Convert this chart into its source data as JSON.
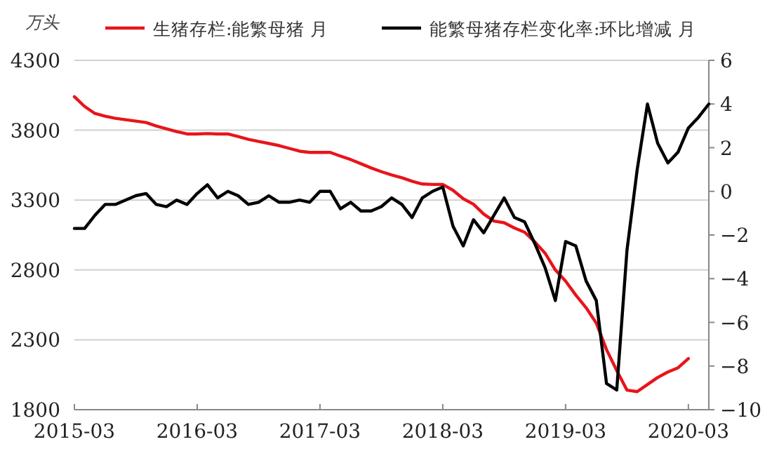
{
  "chart_data": {
    "type": "line",
    "ylabel": "万头",
    "legend": "top",
    "grid": "y",
    "x": [
      "2015-03",
      "2015-04",
      "2015-05",
      "2015-06",
      "2015-07",
      "2015-08",
      "2015-09",
      "2015-10",
      "2015-11",
      "2015-12",
      "2016-01",
      "2016-02",
      "2016-03",
      "2016-04",
      "2016-05",
      "2016-06",
      "2016-07",
      "2016-08",
      "2016-09",
      "2016-10",
      "2016-11",
      "2016-12",
      "2017-01",
      "2017-02",
      "2017-03",
      "2017-04",
      "2017-05",
      "2017-06",
      "2017-07",
      "2017-08",
      "2017-09",
      "2017-10",
      "2017-11",
      "2017-12",
      "2018-01",
      "2018-02",
      "2018-03",
      "2018-04",
      "2018-05",
      "2018-06",
      "2018-07",
      "2018-08",
      "2018-09",
      "2018-10",
      "2018-11",
      "2018-12",
      "2019-01",
      "2019-02",
      "2019-03",
      "2019-04",
      "2019-05",
      "2019-06",
      "2019-07",
      "2019-08",
      "2019-09",
      "2019-10",
      "2019-11",
      "2019-12",
      "2020-01",
      "2020-02",
      "2020-03",
      "2020-04",
      "2020-05"
    ],
    "series": [
      {
        "name": "生猪存栏:能繁母猪 月",
        "color": "#e8141b",
        "values": [
          4040,
          3970,
          3920,
          3900,
          3885,
          3875,
          3865,
          3855,
          3830,
          3810,
          3790,
          3773,
          3773,
          3776,
          3773,
          3773,
          3755,
          3735,
          3720,
          3705,
          3690,
          3670,
          3650,
          3641,
          3641,
          3641,
          3615,
          3590,
          3560,
          3530,
          3503,
          3480,
          3460,
          3435,
          3415,
          3412,
          3412,
          3370,
          3310,
          3270,
          3200,
          3150,
          3138,
          3100,
          3070,
          3000,
          2920,
          2800,
          2720,
          2620,
          2530,
          2420,
          2230,
          2080,
          1940,
          1929,
          1980,
          2030,
          2070,
          2100,
          2166,
          null,
          null
        ]
      },
      {
        "name": "能繁母猪存栏变化率:环比增减 月",
        "color": "#000000",
        "axis": "y2",
        "values": [
          -1.7,
          -1.7,
          -1.1,
          -0.6,
          -0.6,
          -0.4,
          -0.2,
          -0.1,
          -0.6,
          -0.7,
          -0.4,
          -0.6,
          -0.1,
          0.3,
          -0.3,
          0,
          -0.2,
          -0.6,
          -0.5,
          -0.2,
          -0.5,
          -0.5,
          -0.4,
          -0.5,
          0,
          0,
          -0.8,
          -0.5,
          -0.9,
          -0.9,
          -0.7,
          -0.3,
          -0.6,
          -1.2,
          -0.3,
          0,
          0.2,
          -1.6,
          -2.5,
          -1.3,
          -1.9,
          -1.1,
          -0.3,
          -1.2,
          -1.4,
          -2.4,
          -3.5,
          -5.0,
          -2.3,
          -2.5,
          -4.1,
          -5.0,
          -8.8,
          -9.1,
          -2.7,
          1.0,
          4.0,
          2.2,
          1.3,
          1.8,
          2.9,
          3.4,
          4.0
        ]
      }
    ],
    "xlim": [
      "2015-03",
      "2020-05"
    ],
    "xticks": [
      "2015-03",
      "2016-03",
      "2017-03",
      "2018-03",
      "2019-03",
      "2020-03"
    ],
    "ylim": [
      1800,
      4300
    ],
    "yticks": [
      1800,
      2300,
      2800,
      3300,
      3800,
      4300
    ],
    "y2lim": [
      -10,
      6
    ],
    "y2ticks": [
      -10,
      -8,
      -6,
      -4,
      -2,
      0,
      2,
      4,
      6
    ]
  }
}
